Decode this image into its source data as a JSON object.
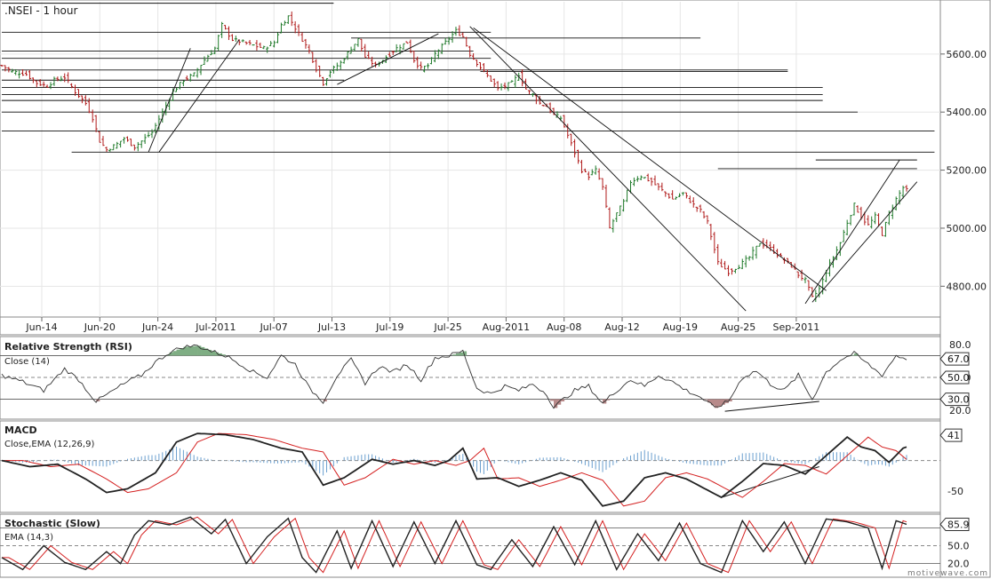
{
  "window": {
    "title": ".NSEI - 1 hour"
  },
  "watermark": "motivewave.com",
  "colors": {
    "up": "#1f7a2a",
    "down": "#b01a1a",
    "line": "#222222",
    "ema": "#d42020",
    "rsi_fill_hi": "#7fae84",
    "rsi_fill_lo": "#b88a8a",
    "hist": "#6a9fcf",
    "grid": "#e6e6e6"
  },
  "chart_data": [
    {
      "type": "candlestick",
      "title": ".NSEI - 1 hour",
      "x_labels": [
        "Jun-14",
        "Jun-20",
        "Jun-24",
        "Jul-2011",
        "Jul-07",
        "Jul-13",
        "Jul-19",
        "Jul-25",
        "Aug-2011",
        "Aug-08",
        "Aug-12",
        "Aug-19",
        "Aug-25",
        "Sep-2011"
      ],
      "y_ticks": [
        "5600.00",
        "5400.00",
        "5200.00",
        "5000.00",
        "4800.00"
      ],
      "ylim": [
        4700,
        5780
      ],
      "close_path": [
        [
          0,
          5560
        ],
        [
          3,
          5540
        ],
        [
          7,
          5530
        ],
        [
          10,
          5500
        ],
        [
          13,
          5490
        ],
        [
          15,
          5510
        ],
        [
          18,
          5520
        ],
        [
          21,
          5470
        ],
        [
          24,
          5430
        ],
        [
          26,
          5380
        ],
        [
          28,
          5300
        ],
        [
          30,
          5270
        ],
        [
          33,
          5290
        ],
        [
          35,
          5310
        ],
        [
          38,
          5280
        ],
        [
          40,
          5300
        ],
        [
          43,
          5330
        ],
        [
          46,
          5400
        ],
        [
          49,
          5470
        ],
        [
          52,
          5510
        ],
        [
          55,
          5530
        ],
        [
          58,
          5580
        ],
        [
          61,
          5620
        ],
        [
          63,
          5700
        ],
        [
          66,
          5650
        ],
        [
          69,
          5640
        ],
        [
          72,
          5630
        ],
        [
          75,
          5620
        ],
        [
          78,
          5640
        ],
        [
          80,
          5700
        ],
        [
          82,
          5730
        ],
        [
          84,
          5690
        ],
        [
          86,
          5650
        ],
        [
          88,
          5610
        ],
        [
          90,
          5550
        ],
        [
          92,
          5500
        ],
        [
          94,
          5540
        ],
        [
          97,
          5570
        ],
        [
          100,
          5620
        ],
        [
          102,
          5650
        ],
        [
          104,
          5590
        ],
        [
          107,
          5560
        ],
        [
          110,
          5590
        ],
        [
          113,
          5620
        ],
        [
          116,
          5640
        ],
        [
          118,
          5580
        ],
        [
          120,
          5550
        ],
        [
          122,
          5560
        ],
        [
          124,
          5600
        ],
        [
          127,
          5640
        ],
        [
          130,
          5680
        ],
        [
          132,
          5660
        ],
        [
          134,
          5600
        ],
        [
          136,
          5570
        ],
        [
          138,
          5540
        ],
        [
          140,
          5510
        ],
        [
          142,
          5480
        ],
        [
          144,
          5490
        ],
        [
          146,
          5500
        ],
        [
          148,
          5530
        ],
        [
          150,
          5480
        ],
        [
          152,
          5460
        ],
        [
          154,
          5430
        ],
        [
          156,
          5420
        ],
        [
          158,
          5390
        ],
        [
          160,
          5380
        ],
        [
          162,
          5320
        ],
        [
          164,
          5260
        ],
        [
          166,
          5200
        ],
        [
          168,
          5180
        ],
        [
          170,
          5200
        ],
        [
          172,
          5140
        ],
        [
          174,
          5000
        ],
        [
          176,
          5050
        ],
        [
          178,
          5090
        ],
        [
          180,
          5160
        ],
        [
          183,
          5180
        ],
        [
          186,
          5160
        ],
        [
          189,
          5130
        ],
        [
          192,
          5100
        ],
        [
          195,
          5120
        ],
        [
          198,
          5080
        ],
        [
          200,
          5060
        ],
        [
          202,
          5020
        ],
        [
          205,
          4880
        ],
        [
          208,
          4850
        ],
        [
          211,
          4870
        ],
        [
          214,
          4900
        ],
        [
          217,
          4950
        ],
        [
          220,
          4930
        ],
        [
          223,
          4900
        ],
        [
          226,
          4870
        ],
        [
          228,
          4840
        ],
        [
          230,
          4820
        ],
        [
          232,
          4760
        ],
        [
          234,
          4790
        ],
        [
          236,
          4850
        ],
        [
          238,
          4900
        ],
        [
          240,
          4950
        ],
        [
          242,
          5020
        ],
        [
          244,
          5080
        ],
        [
          246,
          5040
        ],
        [
          248,
          5010
        ],
        [
          250,
          5040
        ],
        [
          252,
          4980
        ],
        [
          254,
          5050
        ],
        [
          256,
          5100
        ],
        [
          258,
          5140
        ],
        [
          259,
          5130
        ]
      ],
      "n_bars": 260
    },
    {
      "type": "line",
      "title": "Relative Strength (RSI)",
      "subtitle": "Close (14)",
      "y_ticks": [
        "80.0",
        "50.0",
        "20.0"
      ],
      "markers": [
        "67.0",
        "50.0",
        "30.0"
      ],
      "ylim": [
        15,
        85
      ],
      "path": [
        [
          0,
          52
        ],
        [
          6,
          46
        ],
        [
          12,
          38
        ],
        [
          18,
          58
        ],
        [
          22,
          48
        ],
        [
          27,
          28
        ],
        [
          31,
          36
        ],
        [
          36,
          46
        ],
        [
          40,
          52
        ],
        [
          44,
          64
        ],
        [
          48,
          73
        ],
        [
          52,
          78
        ],
        [
          56,
          79
        ],
        [
          60,
          74
        ],
        [
          64,
          70
        ],
        [
          68,
          63
        ],
        [
          72,
          55
        ],
        [
          76,
          50
        ],
        [
          80,
          70
        ],
        [
          84,
          62
        ],
        [
          88,
          40
        ],
        [
          92,
          28
        ],
        [
          96,
          52
        ],
        [
          100,
          66
        ],
        [
          104,
          45
        ],
        [
          108,
          60
        ],
        [
          112,
          55
        ],
        [
          116,
          62
        ],
        [
          120,
          48
        ],
        [
          124,
          68
        ],
        [
          128,
          70
        ],
        [
          132,
          74
        ],
        [
          136,
          40
        ],
        [
          140,
          35
        ],
        [
          144,
          42
        ],
        [
          148,
          38
        ],
        [
          152,
          44
        ],
        [
          156,
          35
        ],
        [
          158,
          22
        ],
        [
          160,
          28
        ],
        [
          164,
          38
        ],
        [
          168,
          42
        ],
        [
          172,
          26
        ],
        [
          176,
          38
        ],
        [
          180,
          48
        ],
        [
          184,
          42
        ],
        [
          188,
          52
        ],
        [
          192,
          46
        ],
        [
          196,
          38
        ],
        [
          200,
          32
        ],
        [
          204,
          22
        ],
        [
          208,
          28
        ],
        [
          212,
          50
        ],
        [
          216,
          56
        ],
        [
          220,
          44
        ],
        [
          224,
          38
        ],
        [
          228,
          52
        ],
        [
          232,
          30
        ],
        [
          236,
          55
        ],
        [
          240,
          66
        ],
        [
          244,
          72
        ],
        [
          248,
          62
        ],
        [
          252,
          52
        ],
        [
          256,
          70
        ],
        [
          259,
          67
        ]
      ]
    },
    {
      "type": "line",
      "title": "MACD",
      "subtitle": "Close,EMA (12,26,9)",
      "y_ticks": [
        "41",
        "-50"
      ],
      "ylim": [
        -80,
        60
      ],
      "path": [
        [
          0,
          0
        ],
        [
          8,
          -10
        ],
        [
          16,
          -6
        ],
        [
          24,
          -30
        ],
        [
          30,
          -52
        ],
        [
          36,
          -46
        ],
        [
          44,
          -20
        ],
        [
          50,
          30
        ],
        [
          56,
          44
        ],
        [
          64,
          42
        ],
        [
          72,
          34
        ],
        [
          80,
          20
        ],
        [
          86,
          14
        ],
        [
          92,
          -40
        ],
        [
          98,
          -28
        ],
        [
          106,
          2
        ],
        [
          112,
          -6
        ],
        [
          118,
          0
        ],
        [
          124,
          -8
        ],
        [
          128,
          0
        ],
        [
          132,
          20
        ],
        [
          136,
          -30
        ],
        [
          142,
          -28
        ],
        [
          148,
          -42
        ],
        [
          154,
          -32
        ],
        [
          160,
          -20
        ],
        [
          166,
          -32
        ],
        [
          172,
          -74
        ],
        [
          178,
          -66
        ],
        [
          184,
          -28
        ],
        [
          190,
          -20
        ],
        [
          196,
          -30
        ],
        [
          202,
          -48
        ],
        [
          206,
          -60
        ],
        [
          212,
          -34
        ],
        [
          218,
          -5
        ],
        [
          224,
          -8
        ],
        [
          230,
          -22
        ],
        [
          236,
          8
        ],
        [
          242,
          38
        ],
        [
          246,
          22
        ],
        [
          250,
          16
        ],
        [
          254,
          -3
        ],
        [
          258,
          20
        ],
        [
          259,
          22
        ]
      ]
    },
    {
      "type": "line",
      "title": "Stochastic (Slow)",
      "subtitle": "EMA (14,3)",
      "y_ticks": [
        "85.9",
        "50.0",
        "20.0"
      ],
      "ylim": [
        0,
        100
      ],
      "path": [
        [
          0,
          30
        ],
        [
          6,
          10
        ],
        [
          12,
          50
        ],
        [
          18,
          22
        ],
        [
          24,
          10
        ],
        [
          30,
          40
        ],
        [
          34,
          20
        ],
        [
          38,
          68
        ],
        [
          42,
          92
        ],
        [
          48,
          85
        ],
        [
          54,
          98
        ],
        [
          60,
          70
        ],
        [
          64,
          94
        ],
        [
          70,
          20
        ],
        [
          76,
          65
        ],
        [
          82,
          96
        ],
        [
          86,
          30
        ],
        [
          90,
          5
        ],
        [
          96,
          75
        ],
        [
          100,
          12
        ],
        [
          106,
          92
        ],
        [
          112,
          15
        ],
        [
          118,
          90
        ],
        [
          124,
          20
        ],
        [
          130,
          92
        ],
        [
          136,
          18
        ],
        [
          140,
          10
        ],
        [
          146,
          60
        ],
        [
          152,
          15
        ],
        [
          158,
          82
        ],
        [
          164,
          18
        ],
        [
          170,
          92
        ],
        [
          176,
          10
        ],
        [
          182,
          70
        ],
        [
          188,
          25
        ],
        [
          194,
          88
        ],
        [
          200,
          20
        ],
        [
          206,
          5
        ],
        [
          212,
          92
        ],
        [
          218,
          40
        ],
        [
          224,
          90
        ],
        [
          230,
          20
        ],
        [
          236,
          95
        ],
        [
          242,
          90
        ],
        [
          248,
          80
        ],
        [
          252,
          12
        ],
        [
          256,
          92
        ],
        [
          259,
          85.9
        ]
      ]
    }
  ]
}
